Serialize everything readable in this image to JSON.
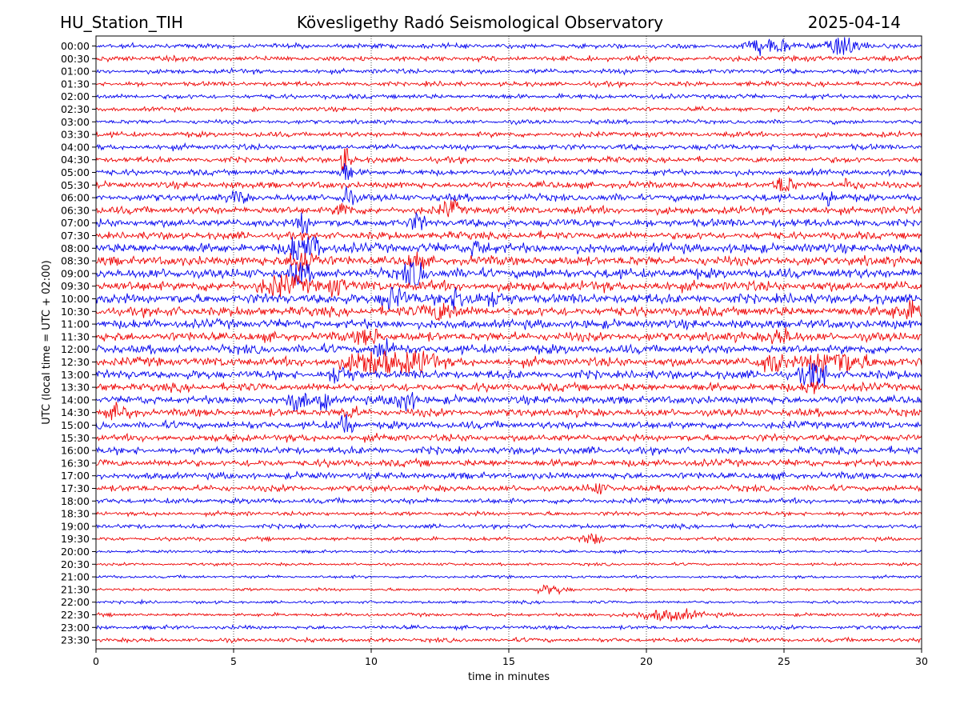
{
  "header": {
    "station": "HU_Station_TIH",
    "observatory": "Kövesligethy Radó Seismological Observatory",
    "date": "2025-04-14"
  },
  "chart_data": {
    "type": "line",
    "subtype": "helicorder",
    "xlabel": "time in minutes",
    "ylabel": "UTC (local time = UTC + 02:00)",
    "xlim": [
      0,
      30
    ],
    "xticks": [
      0,
      5,
      10,
      15,
      20,
      25,
      30
    ],
    "grid": "vertical dotted lines at each x tick",
    "trace_colors": [
      "#0000ee",
      "#ee0000"
    ],
    "rows": [
      {
        "label": "00:00",
        "noise": 0.5
      },
      {
        "label": "00:30",
        "noise": 0.55
      },
      {
        "label": "01:00",
        "noise": 0.5
      },
      {
        "label": "01:30",
        "noise": 0.5
      },
      {
        "label": "02:00",
        "noise": 0.5
      },
      {
        "label": "02:30",
        "noise": 0.45
      },
      {
        "label": "03:00",
        "noise": 0.45
      },
      {
        "label": "03:30",
        "noise": 0.55
      },
      {
        "label": "04:00",
        "noise": 0.6
      },
      {
        "label": "04:30",
        "noise": 0.6
      },
      {
        "label": "05:00",
        "noise": 0.6
      },
      {
        "label": "05:30",
        "noise": 0.7
      },
      {
        "label": "06:00",
        "noise": 0.75
      },
      {
        "label": "06:30",
        "noise": 0.8
      },
      {
        "label": "07:00",
        "noise": 0.85
      },
      {
        "label": "07:30",
        "noise": 0.8
      },
      {
        "label": "08:00",
        "noise": 1.0
      },
      {
        "label": "08:30",
        "noise": 1.0
      },
      {
        "label": "09:00",
        "noise": 1.05
      },
      {
        "label": "09:30",
        "noise": 1.05
      },
      {
        "label": "10:00",
        "noise": 1.05
      },
      {
        "label": "10:30",
        "noise": 1.0
      },
      {
        "label": "11:00",
        "noise": 0.95
      },
      {
        "label": "11:30",
        "noise": 0.95
      },
      {
        "label": "12:00",
        "noise": 0.95
      },
      {
        "label": "12:30",
        "noise": 0.95
      },
      {
        "label": "13:00",
        "noise": 0.9
      },
      {
        "label": "13:30",
        "noise": 0.85
      },
      {
        "label": "14:00",
        "noise": 0.85
      },
      {
        "label": "14:30",
        "noise": 0.8
      },
      {
        "label": "15:00",
        "noise": 0.8
      },
      {
        "label": "15:30",
        "noise": 0.75
      },
      {
        "label": "16:00",
        "noise": 0.75
      },
      {
        "label": "16:30",
        "noise": 0.75
      },
      {
        "label": "17:00",
        "noise": 0.7
      },
      {
        "label": "17:30",
        "noise": 0.65
      },
      {
        "label": "18:00",
        "noise": 0.55
      },
      {
        "label": "18:30",
        "noise": 0.45
      },
      {
        "label": "19:00",
        "noise": 0.45
      },
      {
        "label": "19:30",
        "noise": 0.4
      },
      {
        "label": "20:00",
        "noise": 0.3
      },
      {
        "label": "20:30",
        "noise": 0.3
      },
      {
        "label": "21:00",
        "noise": 0.3
      },
      {
        "label": "21:30",
        "noise": 0.3
      },
      {
        "label": "22:00",
        "noise": 0.3
      },
      {
        "label": "22:30",
        "noise": 0.35
      },
      {
        "label": "23:00",
        "noise": 0.4
      },
      {
        "label": "23:30",
        "noise": 0.45
      }
    ],
    "events": [
      {
        "row": 0,
        "minute": 27.2,
        "amp": 2.5,
        "width": 0.6
      },
      {
        "row": 0,
        "minute": 24.5,
        "amp": 1.6,
        "width": 0.8
      },
      {
        "row": 9,
        "minute": 9.1,
        "amp": 5.0,
        "width": 0.15
      },
      {
        "row": 10,
        "minute": 9.1,
        "amp": 2.5,
        "width": 0.2
      },
      {
        "row": 11,
        "minute": 25.0,
        "amp": 2.0,
        "width": 0.3
      },
      {
        "row": 11,
        "minute": 27.4,
        "amp": 2.0,
        "width": 0.2
      },
      {
        "row": 12,
        "minute": 5.2,
        "amp": 2.2,
        "width": 0.2
      },
      {
        "row": 12,
        "minute": 9.1,
        "amp": 3.0,
        "width": 0.2
      },
      {
        "row": 12,
        "minute": 26.6,
        "amp": 1.8,
        "width": 0.2
      },
      {
        "row": 13,
        "minute": 9.0,
        "amp": 2.5,
        "width": 0.2
      },
      {
        "row": 13,
        "minute": 12.9,
        "amp": 2.0,
        "width": 0.3
      },
      {
        "row": 14,
        "minute": 11.7,
        "amp": 2.2,
        "width": 0.2
      },
      {
        "row": 14,
        "minute": 7.5,
        "amp": 2.5,
        "width": 0.2
      },
      {
        "row": 16,
        "minute": 7.3,
        "amp": 4.0,
        "width": 0.3
      },
      {
        "row": 16,
        "minute": 7.9,
        "amp": 3.5,
        "width": 0.3
      },
      {
        "row": 16,
        "minute": 13.9,
        "amp": 2.0,
        "width": 0.3
      },
      {
        "row": 17,
        "minute": 7.5,
        "amp": 3.5,
        "width": 0.4
      },
      {
        "row": 17,
        "minute": 11.6,
        "amp": 2.5,
        "width": 0.2
      },
      {
        "row": 18,
        "minute": 11.6,
        "amp": 4.5,
        "width": 0.3
      },
      {
        "row": 18,
        "minute": 7.4,
        "amp": 2.5,
        "width": 0.3
      },
      {
        "row": 19,
        "minute": 6.8,
        "amp": 2.0,
        "width": 0.8
      },
      {
        "row": 19,
        "minute": 8.7,
        "amp": 2.0,
        "width": 0.3
      },
      {
        "row": 20,
        "minute": 10.8,
        "amp": 2.5,
        "width": 0.4
      },
      {
        "row": 20,
        "minute": 13.2,
        "amp": 2.5,
        "width": 0.5
      },
      {
        "row": 20,
        "minute": 14.6,
        "amp": 1.8,
        "width": 0.3
      },
      {
        "row": 21,
        "minute": 12.5,
        "amp": 2.0,
        "width": 0.6
      },
      {
        "row": 21,
        "minute": 29.5,
        "amp": 2.0,
        "width": 0.6
      },
      {
        "row": 23,
        "minute": 9.9,
        "amp": 1.8,
        "width": 0.4
      },
      {
        "row": 23,
        "minute": 24.8,
        "amp": 1.8,
        "width": 0.4
      },
      {
        "row": 24,
        "minute": 10.5,
        "amp": 2.0,
        "width": 0.4
      },
      {
        "row": 25,
        "minute": 10.1,
        "amp": 3.0,
        "width": 1.0
      },
      {
        "row": 25,
        "minute": 11.8,
        "amp": 2.8,
        "width": 0.5
      },
      {
        "row": 25,
        "minute": 24.6,
        "amp": 2.5,
        "width": 0.4
      },
      {
        "row": 25,
        "minute": 26.9,
        "amp": 2.8,
        "width": 1.0
      },
      {
        "row": 26,
        "minute": 8.9,
        "amp": 3.0,
        "width": 0.3
      },
      {
        "row": 26,
        "minute": 26.0,
        "amp": 4.0,
        "width": 0.3
      },
      {
        "row": 26,
        "minute": 26.4,
        "amp": 3.0,
        "width": 0.2
      },
      {
        "row": 27,
        "minute": 26.0,
        "amp": 2.0,
        "width": 0.2
      },
      {
        "row": 28,
        "minute": 7.3,
        "amp": 4.5,
        "width": 0.25
      },
      {
        "row": 28,
        "minute": 8.3,
        "amp": 2.5,
        "width": 0.2
      },
      {
        "row": 28,
        "minute": 11.2,
        "amp": 2.5,
        "width": 0.4
      },
      {
        "row": 29,
        "minute": 0.9,
        "amp": 1.8,
        "width": 0.3
      },
      {
        "row": 29,
        "minute": 9.2,
        "amp": 2.0,
        "width": 0.2
      },
      {
        "row": 30,
        "minute": 9.1,
        "amp": 3.5,
        "width": 0.2
      },
      {
        "row": 35,
        "minute": 18.2,
        "amp": 1.2,
        "width": 0.3
      },
      {
        "row": 39,
        "minute": 18.1,
        "amp": 1.5,
        "width": 0.3
      },
      {
        "row": 43,
        "minute": 16.5,
        "amp": 1.0,
        "width": 0.5
      },
      {
        "row": 45,
        "minute": 20.8,
        "amp": 1.2,
        "width": 1.2
      }
    ]
  }
}
